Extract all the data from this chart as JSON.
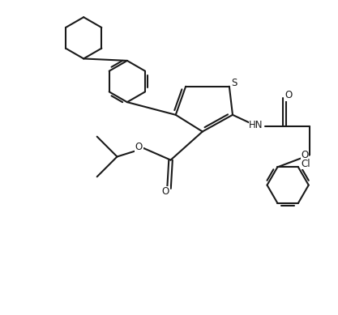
{
  "background_color": "#ffffff",
  "line_color": "#1a1a1a",
  "line_width": 1.5,
  "figsize": [
    4.17,
    3.89
  ],
  "dpi": 100,
  "xlim": [
    0,
    10
  ],
  "ylim": [
    0,
    9.35
  ]
}
